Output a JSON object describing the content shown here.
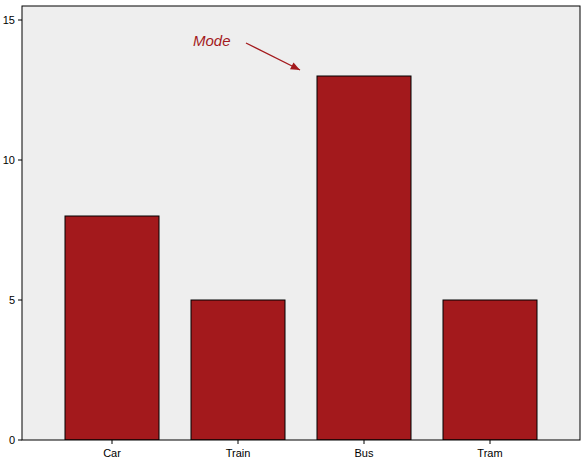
{
  "chart_data": {
    "type": "bar",
    "annotation": "Mode",
    "categories": [
      "Car",
      "Train",
      "Bus",
      "Tram"
    ],
    "values": [
      8,
      5,
      13,
      5
    ],
    "color": "#a3191c",
    "ylim": [
      0,
      15.5
    ],
    "yticks": [
      0,
      5,
      10,
      15
    ],
    "grid": false
  }
}
